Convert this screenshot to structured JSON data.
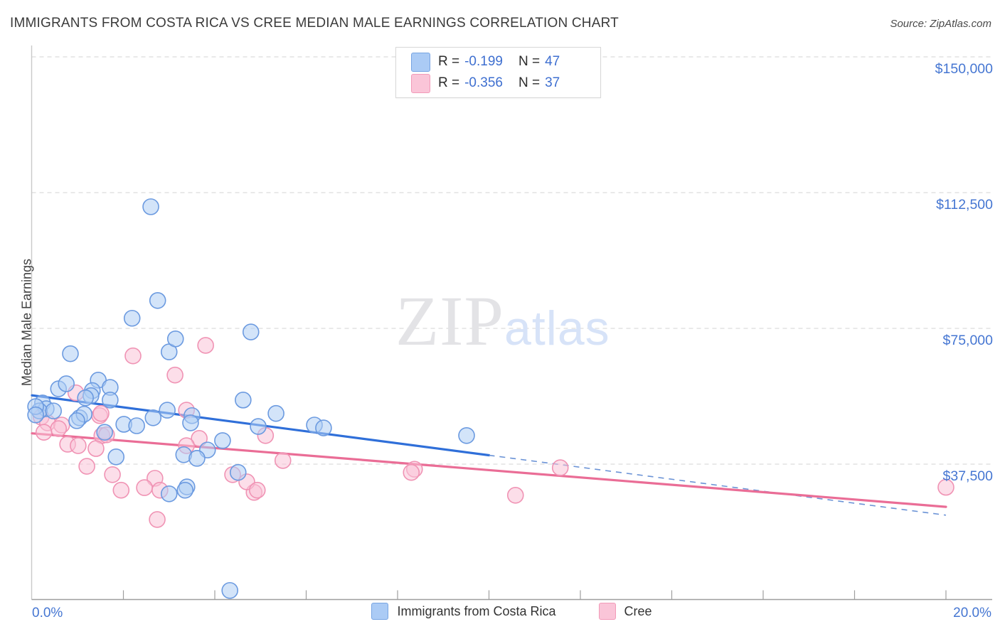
{
  "header": {
    "title": "IMMIGRANTS FROM COSTA RICA VS CREE MEDIAN MALE EARNINGS CORRELATION CHART",
    "source": "Source: ZipAtlas.com"
  },
  "legend_box": {
    "rows": [
      {
        "series": "Immigrants from Costa Rica",
        "r_label": "R =",
        "r_value": "-0.199",
        "n_label": "N =",
        "n_value": "47"
      },
      {
        "series": "Cree",
        "r_label": "R =",
        "r_value": "-0.356",
        "n_label": "N =",
        "n_value": "37"
      }
    ]
  },
  "axes": {
    "y_title": "Median Male Earnings",
    "x_min_label": "0.0%",
    "x_max_label": "20.0%"
  },
  "bottom_legend": [
    {
      "label": "Immigrants from Costa Rica"
    },
    {
      "label": "Cree"
    }
  ],
  "watermark": {
    "part1": "ZIP",
    "part2": "atlas"
  },
  "colors": {
    "blue_fill": "#aecdf4",
    "blue_stroke": "#6b9ae0",
    "blue_trend": "#2f6fd9",
    "blue_trend_dashed": "#6b93d6",
    "pink_fill": "#fac3d7",
    "pink_stroke": "#f093b4",
    "pink_trend": "#ea6d96",
    "axis_label_blue": "#4576d2",
    "gridline": "#dcdcdc",
    "axis_line": "#9e9e9e",
    "y_axis_line": "#c9c9c9",
    "title_text": "#3b3b3b"
  },
  "chart_data": {
    "type": "scatter",
    "title": "Immigrants from Costa Rica vs Cree Median Male Earnings",
    "xlabel": "Immigrants from Costa Rica (%)",
    "ylabel": "Median Male Earnings",
    "x_axis": {
      "min": 0,
      "max": 20,
      "unit": "%",
      "tick_step_pct": 2,
      "shown_labels": [
        "0.0%",
        "20.0%"
      ]
    },
    "y_axis": {
      "min": 0,
      "max": 150000,
      "gridline_values": [
        150000,
        112500,
        75000,
        37500
      ],
      "tick_labels": [
        "$150,000",
        "$112,500",
        "$75,000",
        "$37,500"
      ],
      "grid": "dashed"
    },
    "legend_position": "bottom-center",
    "series": [
      {
        "name": "Immigrants from Costa Rica",
        "R": -0.199,
        "N": 47,
        "points_pct_dollars": [
          [
            0.84,
            68000
          ],
          [
            0.58,
            58300
          ],
          [
            0.75,
            59700
          ],
          [
            1.45,
            60700
          ],
          [
            1.32,
            57800
          ],
          [
            1.71,
            58700
          ],
          [
            1.29,
            56400
          ],
          [
            1.71,
            55200
          ],
          [
            0.23,
            54400
          ],
          [
            0.31,
            52800
          ],
          [
            0.16,
            52200
          ],
          [
            0.47,
            52200
          ],
          [
            1.04,
            50300
          ],
          [
            1.14,
            51300
          ],
          [
            0.98,
            49500
          ],
          [
            1.59,
            46300
          ],
          [
            2.19,
            77800
          ],
          [
            2.6,
            108600
          ],
          [
            2.75,
            82700
          ],
          [
            3.0,
            68500
          ],
          [
            3.14,
            72100
          ],
          [
            1.84,
            39500
          ],
          [
            2.01,
            48500
          ],
          [
            2.29,
            48100
          ],
          [
            2.65,
            50300
          ],
          [
            2.96,
            52400
          ],
          [
            3.5,
            50900
          ],
          [
            3.47,
            48900
          ],
          [
            4.17,
            44000
          ],
          [
            3.84,
            41400
          ],
          [
            3.32,
            40100
          ],
          [
            3.61,
            39100
          ],
          [
            3.39,
            31200
          ],
          [
            4.51,
            35200
          ],
          [
            3.0,
            29300
          ],
          [
            3.35,
            30300
          ],
          [
            4.62,
            55200
          ],
          [
            4.79,
            74000
          ],
          [
            4.95,
            47900
          ],
          [
            5.34,
            51500
          ],
          [
            6.18,
            48300
          ],
          [
            6.38,
            47500
          ],
          [
            9.51,
            45400
          ],
          [
            4.33,
            2600
          ],
          [
            0.08,
            53400
          ],
          [
            0.08,
            51100
          ],
          [
            1.17,
            55800
          ]
        ]
      },
      {
        "name": "Cree",
        "R": -0.356,
        "N": 37,
        "points_pct_dollars": [
          [
            0.96,
            57200
          ],
          [
            0.2,
            50500
          ],
          [
            0.34,
            48900
          ],
          [
            1.48,
            50900
          ],
          [
            0.65,
            48300
          ],
          [
            0.58,
            47300
          ],
          [
            1.53,
            45400
          ],
          [
            0.78,
            43000
          ],
          [
            1.4,
            41800
          ],
          [
            1.2,
            36900
          ],
          [
            1.76,
            34600
          ],
          [
            1.95,
            30300
          ],
          [
            2.69,
            33600
          ],
          [
            2.46,
            31000
          ],
          [
            2.8,
            30300
          ],
          [
            4.86,
            29700
          ],
          [
            2.74,
            22200
          ],
          [
            2.21,
            67400
          ],
          [
            3.8,
            70300
          ],
          [
            3.13,
            62100
          ],
          [
            1.51,
            51500
          ],
          [
            3.38,
            52400
          ],
          [
            3.66,
            44600
          ],
          [
            3.38,
            42600
          ],
          [
            5.11,
            45400
          ],
          [
            4.39,
            34600
          ],
          [
            4.7,
            32600
          ],
          [
            4.93,
            30300
          ],
          [
            5.49,
            38500
          ],
          [
            8.37,
            36100
          ],
          [
            8.3,
            35200
          ],
          [
            11.56,
            36500
          ],
          [
            10.58,
            28900
          ],
          [
            20.0,
            31100
          ],
          [
            1.01,
            42600
          ],
          [
            0.26,
            46300
          ],
          [
            1.63,
            45600
          ]
        ]
      }
    ],
    "trend_lines": [
      {
        "series": "Immigrants from Costa Rica",
        "x1_pct": 0,
        "y1_dollars": 56500,
        "x2_pct": 20,
        "y2_dollars": 23400,
        "solid_until_pct": 10,
        "style_after": "dashed"
      },
      {
        "series": "Cree",
        "x1_pct": 0,
        "y1_dollars": 46000,
        "x2_pct": 20,
        "y2_dollars": 25700,
        "solid_until_pct": 20
      }
    ]
  }
}
